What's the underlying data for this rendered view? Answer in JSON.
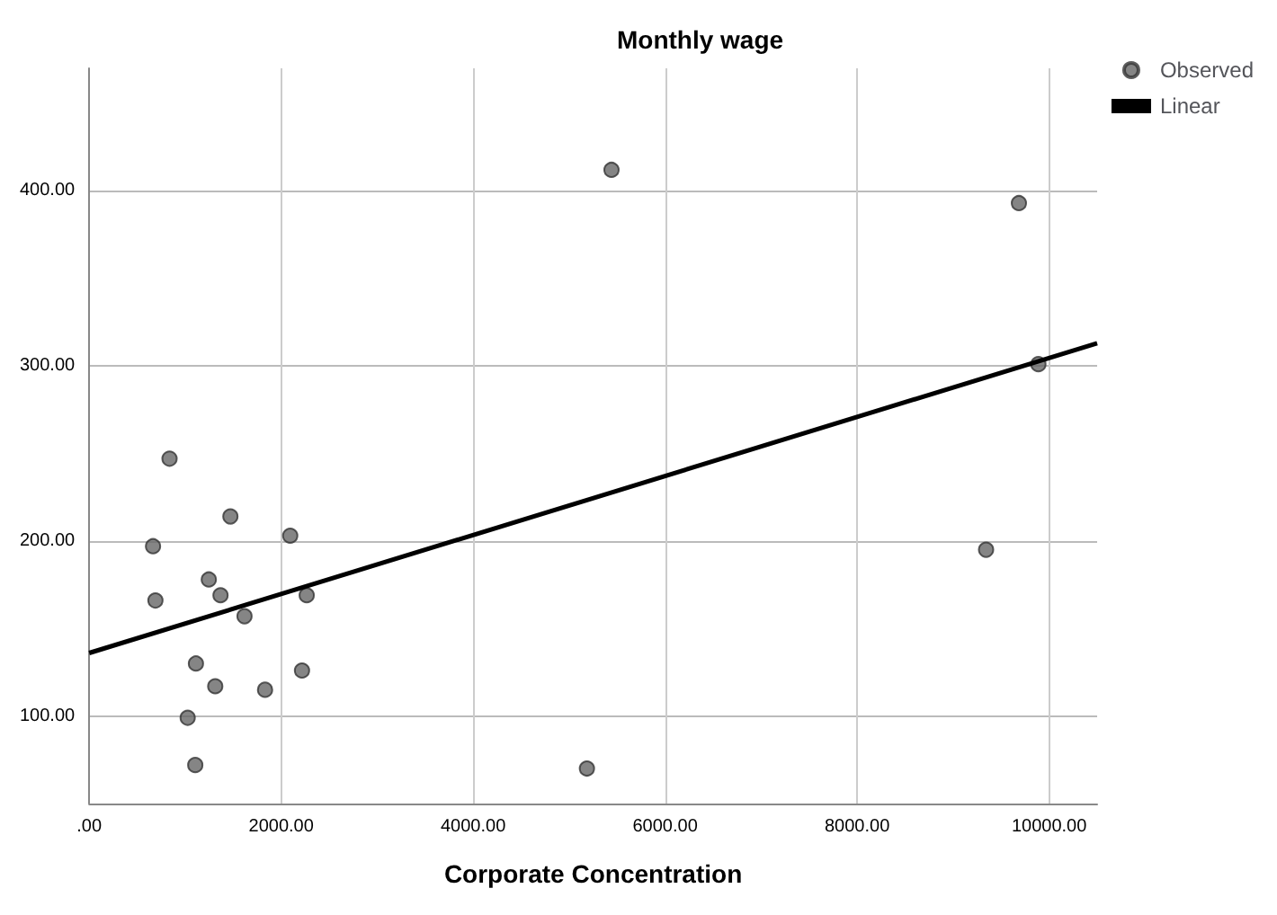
{
  "chart_data": {
    "type": "scatter",
    "title": "Monthly wage",
    "xlabel": "Corporate Concentration",
    "xlim": [
      0,
      10500
    ],
    "xticks": [
      {
        "value": 0,
        "label": ".00"
      },
      {
        "value": 2000,
        "label": "2000.00"
      },
      {
        "value": 4000,
        "label": "4000.00"
      },
      {
        "value": 6000,
        "label": "6000.00"
      },
      {
        "value": 8000,
        "label": "8000.00"
      },
      {
        "value": 10000,
        "label": "10000.00"
      }
    ],
    "ylim": [
      50,
      470
    ],
    "yticks": [
      {
        "value": 100,
        "label": "100.00"
      },
      {
        "value": 200,
        "label": "200.00"
      },
      {
        "value": 300,
        "label": "300.00"
      },
      {
        "value": 400,
        "label": "400.00"
      }
    ],
    "grid": true,
    "legend": "top right",
    "marker": "circle",
    "series": [
      {
        "name": "Observed",
        "color": "#666666",
        "x": [
          837,
          1471,
          665,
          2094,
          1246,
          1368,
          690,
          2266,
          1618,
          1112,
          2217,
          1313,
          1832,
          1026,
          1105,
          5185,
          5441,
          9685,
          9888,
          9343
        ],
        "values": [
          247,
          214,
          197,
          203,
          178,
          169,
          166,
          169,
          157,
          130,
          126,
          117,
          115,
          99,
          72,
          70,
          412,
          393,
          301,
          195
        ]
      },
      {
        "name": "Linear",
        "type": "line",
        "color": "#000000",
        "x": [
          0,
          10500
        ],
        "values": [
          136,
          313
        ],
        "marker": "none",
        "line_style": "solid"
      }
    ]
  }
}
